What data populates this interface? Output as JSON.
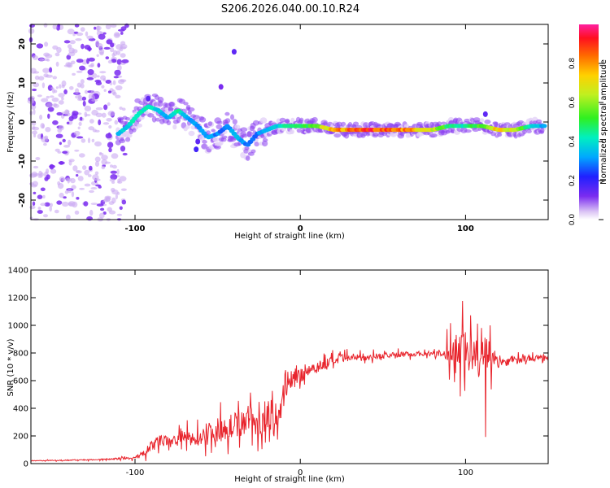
{
  "title": "S206.2026.040.00.10.R24",
  "colors": {
    "snr_line": "#e8242c",
    "axis": "#000000",
    "scatter": "#7a2cf0"
  },
  "chart_data": [
    {
      "type": "heatmap",
      "name": "spectrogram",
      "xlabel": "Height of straight line (km)",
      "ylabel": "Frequency (Hz)",
      "xlim": [
        -163,
        150
      ],
      "ylim": [
        -25,
        25
      ],
      "x_ticks": [
        -100,
        0,
        100
      ],
      "y_ticks": [
        -20,
        -10,
        0,
        10,
        20
      ],
      "ridge": {
        "x": [
          -110,
          -104,
          -98,
          -92,
          -86,
          -80,
          -74,
          -68,
          -62,
          -56,
          -50,
          -44,
          -38,
          -32,
          -26,
          -20,
          -14,
          -8,
          0,
          10,
          20,
          40,
          60,
          80,
          90,
          100,
          110,
          120,
          130,
          140,
          148
        ],
        "freq": [
          -3,
          -1,
          2,
          4,
          3,
          1,
          3,
          1,
          -1,
          -4,
          -3,
          -1,
          -4,
          -6,
          -3,
          -2,
          -1,
          -1,
          -1,
          -1,
          -2,
          -2,
          -2,
          -2,
          -1,
          -1,
          -1,
          -2,
          -2,
          -1,
          -1
        ],
        "amplitude": [
          0.35,
          0.4,
          0.45,
          0.45,
          0.4,
          0.35,
          0.45,
          0.35,
          0.3,
          0.35,
          0.3,
          0.3,
          0.35,
          0.3,
          0.3,
          0.35,
          0.4,
          0.45,
          0.5,
          0.6,
          0.8,
          0.95,
          0.9,
          0.7,
          0.5,
          0.45,
          0.55,
          0.8,
          0.7,
          0.4,
          0.35
        ]
      }
    },
    {
      "type": "colorbar",
      "name": "colorbar",
      "label": "Normalized spectral amplitude",
      "range": [
        0,
        1
      ],
      "ticks": [
        "0.0",
        "0.2",
        "0.4",
        "0.6",
        "0.8"
      ],
      "tick_values": [
        0,
        0.2,
        0.4,
        0.6,
        0.8
      ]
    },
    {
      "type": "line",
      "name": "snr",
      "xlabel": "Height of straight line (km)",
      "ylabel": "SNR (10 * v/v)",
      "xlim": [
        -163,
        150
      ],
      "ylim": [
        0,
        1400
      ],
      "x_ticks": [
        -100,
        0,
        100
      ],
      "y_ticks": [
        0,
        200,
        400,
        600,
        800,
        1000,
        1200,
        1400
      ],
      "x": [
        -163,
        -140,
        -120,
        -100,
        -95,
        -90,
        -85,
        -80,
        -75,
        -70,
        -65,
        -60,
        -55,
        -50,
        -45,
        -40,
        -35,
        -30,
        -25,
        -20,
        -15,
        -10,
        -5,
        0,
        5,
        10,
        15,
        20,
        25,
        30,
        40,
        50,
        60,
        70,
        80,
        85,
        90,
        95,
        100,
        105,
        110,
        113,
        116,
        120,
        130,
        140,
        150
      ],
      "y": [
        20,
        25,
        30,
        40,
        70,
        120,
        170,
        150,
        180,
        190,
        170,
        200,
        230,
        240,
        260,
        280,
        300,
        330,
        260,
        380,
        250,
        500,
        600,
        640,
        680,
        700,
        720,
        740,
        760,
        760,
        770,
        780,
        790,
        795,
        795,
        790,
        800,
        850,
        800,
        780,
        760,
        700,
        750,
        730,
        750,
        760,
        780
      ],
      "spread": [
        5,
        8,
        10,
        20,
        60,
        90,
        110,
        100,
        110,
        120,
        120,
        140,
        160,
        200,
        190,
        200,
        200,
        250,
        200,
        250,
        200,
        200,
        150,
        150,
        100,
        100,
        90,
        80,
        70,
        60,
        50,
        50,
        40,
        40,
        40,
        50,
        200,
        350,
        400,
        350,
        300,
        650,
        150,
        80,
        60,
        50,
        50
      ]
    }
  ]
}
